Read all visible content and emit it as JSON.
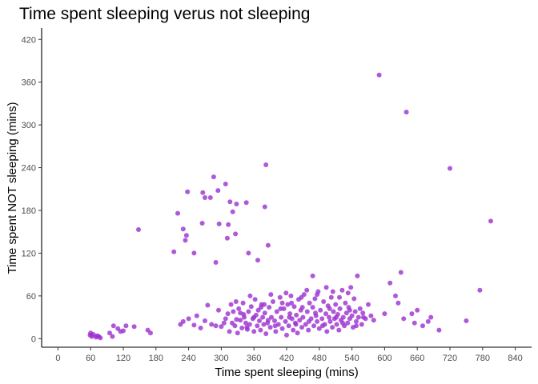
{
  "chart_data": {
    "type": "scatter",
    "title": "Time spent sleeping verus not sleeping",
    "xlabel": "Time spent sleeping (mins)",
    "ylabel": "Time spent NOT sleeping (mins)",
    "xlim": [
      -30,
      870
    ],
    "ylim": [
      -12,
      436
    ],
    "xticks": [
      0,
      60,
      120,
      180,
      240,
      300,
      360,
      420,
      480,
      540,
      600,
      660,
      720,
      780,
      840
    ],
    "yticks": [
      0,
      60,
      120,
      180,
      240,
      300,
      360,
      420
    ],
    "grid": false,
    "point_color": "#9b30d0",
    "points": [
      [
        59,
        5
      ],
      [
        60,
        8
      ],
      [
        62,
        3
      ],
      [
        65,
        6
      ],
      [
        70,
        2
      ],
      [
        72,
        4
      ],
      [
        75,
        3
      ],
      [
        78,
        1
      ],
      [
        95,
        8
      ],
      [
        100,
        3
      ],
      [
        102,
        18
      ],
      [
        110,
        14
      ],
      [
        115,
        10
      ],
      [
        120,
        11
      ],
      [
        125,
        18
      ],
      [
        140,
        17
      ],
      [
        165,
        12
      ],
      [
        170,
        8
      ],
      [
        148,
        153
      ],
      [
        213,
        122
      ],
      [
        220,
        176
      ],
      [
        230,
        154
      ],
      [
        234,
        138
      ],
      [
        236,
        145
      ],
      [
        238,
        206
      ],
      [
        250,
        120
      ],
      [
        265,
        162
      ],
      [
        266,
        205
      ],
      [
        270,
        198
      ],
      [
        280,
        198
      ],
      [
        286,
        227
      ],
      [
        290,
        107
      ],
      [
        294,
        208
      ],
      [
        296,
        161
      ],
      [
        308,
        217
      ],
      [
        311,
        141
      ],
      [
        313,
        160
      ],
      [
        316,
        192
      ],
      [
        321,
        178
      ],
      [
        326,
        147
      ],
      [
        328,
        189
      ],
      [
        346,
        191
      ],
      [
        350,
        120
      ],
      [
        367,
        110
      ],
      [
        380,
        185
      ],
      [
        382,
        244
      ],
      [
        386,
        131
      ],
      [
        590,
        370
      ],
      [
        640,
        318
      ],
      [
        720,
        239
      ],
      [
        795,
        165
      ],
      [
        775,
        68
      ],
      [
        750,
        25
      ],
      [
        600,
        35
      ],
      [
        610,
        78
      ],
      [
        620,
        60
      ],
      [
        625,
        50
      ],
      [
        630,
        93
      ],
      [
        635,
        28
      ],
      [
        650,
        35
      ],
      [
        655,
        22
      ],
      [
        660,
        40
      ],
      [
        670,
        18
      ],
      [
        680,
        24
      ],
      [
        685,
        30
      ],
      [
        700,
        12
      ],
      [
        225,
        20
      ],
      [
        230,
        24
      ],
      [
        240,
        28
      ],
      [
        250,
        19
      ],
      [
        255,
        32
      ],
      [
        262,
        15
      ],
      [
        270,
        25
      ],
      [
        275,
        47
      ],
      [
        282,
        20
      ],
      [
        290,
        18
      ],
      [
        295,
        40
      ],
      [
        300,
        17
      ],
      [
        305,
        22
      ],
      [
        308,
        28
      ],
      [
        312,
        35
      ],
      [
        315,
        10
      ],
      [
        318,
        48
      ],
      [
        322,
        38
      ],
      [
        325,
        18
      ],
      [
        328,
        27
      ],
      [
        330,
        8
      ],
      [
        332,
        42
      ],
      [
        335,
        26
      ],
      [
        338,
        15
      ],
      [
        340,
        50
      ],
      [
        342,
        30
      ],
      [
        345,
        22
      ],
      [
        348,
        13
      ],
      [
        350,
        38
      ],
      [
        352,
        20
      ],
      [
        355,
        45
      ],
      [
        358,
        28
      ],
      [
        360,
        10
      ],
      [
        362,
        55
      ],
      [
        364,
        33
      ],
      [
        366,
        18
      ],
      [
        368,
        40
      ],
      [
        370,
        25
      ],
      [
        372,
        12
      ],
      [
        374,
        48
      ],
      [
        376,
        30
      ],
      [
        378,
        20
      ],
      [
        380,
        36
      ],
      [
        382,
        7
      ],
      [
        385,
        22
      ],
      [
        388,
        44
      ],
      [
        390,
        16
      ],
      [
        392,
        30
      ],
      [
        395,
        52
      ],
      [
        398,
        25
      ],
      [
        400,
        10
      ],
      [
        402,
        38
      ],
      [
        405,
        20
      ],
      [
        408,
        58
      ],
      [
        410,
        30
      ],
      [
        412,
        14
      ],
      [
        415,
        42
      ],
      [
        418,
        24
      ],
      [
        420,
        5
      ],
      [
        422,
        48
      ],
      [
        424,
        18
      ],
      [
        426,
        35
      ],
      [
        428,
        60
      ],
      [
        430,
        28
      ],
      [
        432,
        12
      ],
      [
        434,
        45
      ],
      [
        436,
        22
      ],
      [
        438,
        33
      ],
      [
        440,
        8
      ],
      [
        442,
        55
      ],
      [
        444,
        26
      ],
      [
        446,
        40
      ],
      [
        448,
        16
      ],
      [
        450,
        30
      ],
      [
        452,
        62
      ],
      [
        455,
        20
      ],
      [
        458,
        38
      ],
      [
        460,
        12
      ],
      [
        462,
        50
      ],
      [
        465,
        28
      ],
      [
        468,
        44
      ],
      [
        470,
        18
      ],
      [
        472,
        56
      ],
      [
        474,
        32
      ],
      [
        476,
        24
      ],
      [
        478,
        66
      ],
      [
        480,
        14
      ],
      [
        482,
        40
      ],
      [
        485,
        28
      ],
      [
        488,
        52
      ],
      [
        490,
        20
      ],
      [
        492,
        35
      ],
      [
        494,
        10
      ],
      [
        496,
        46
      ],
      [
        498,
        30
      ],
      [
        500,
        24
      ],
      [
        502,
        58
      ],
      [
        504,
        16
      ],
      [
        506,
        38
      ],
      [
        508,
        28
      ],
      [
        510,
        48
      ],
      [
        512,
        20
      ],
      [
        514,
        34
      ],
      [
        516,
        12
      ],
      [
        518,
        42
      ],
      [
        520,
        26
      ],
      [
        522,
        68
      ],
      [
        524,
        30
      ],
      [
        526,
        18
      ],
      [
        528,
        50
      ],
      [
        530,
        36
      ],
      [
        532,
        22
      ],
      [
        534,
        44
      ],
      [
        536,
        28
      ],
      [
        538,
        72
      ],
      [
        540,
        32
      ],
      [
        542,
        16
      ],
      [
        544,
        56
      ],
      [
        546,
        38
      ],
      [
        548,
        24
      ],
      [
        550,
        88
      ],
      [
        552,
        30
      ],
      [
        555,
        42
      ],
      [
        558,
        20
      ],
      [
        560,
        36
      ],
      [
        565,
        28
      ],
      [
        570,
        48
      ],
      [
        575,
        32
      ],
      [
        580,
        26
      ],
      [
        320,
        22
      ],
      [
        335,
        36
      ],
      [
        347,
        16
      ],
      [
        360,
        30
      ],
      [
        373,
        44
      ],
      [
        386,
        26
      ],
      [
        399,
        18
      ],
      [
        412,
        50
      ],
      [
        425,
        30
      ],
      [
        437,
        20
      ],
      [
        449,
        44
      ],
      [
        461,
        24
      ],
      [
        473,
        36
      ],
      [
        486,
        18
      ],
      [
        499,
        42
      ],
      [
        511,
        30
      ],
      [
        523,
        22
      ],
      [
        536,
        40
      ],
      [
        548,
        18
      ],
      [
        561,
        30
      ],
      [
        391,
        62
      ],
      [
        419,
        64
      ],
      [
        447,
        58
      ],
      [
        468,
        88
      ],
      [
        493,
        72
      ],
      [
        457,
        68
      ],
      [
        429,
        50
      ],
      [
        409,
        42
      ],
      [
        379,
        48
      ],
      [
        353,
        60
      ],
      [
        341,
        34
      ],
      [
        327,
        52
      ],
      [
        476,
        62
      ],
      [
        505,
        66
      ],
      [
        517,
        58
      ],
      [
        533,
        64
      ]
    ]
  }
}
